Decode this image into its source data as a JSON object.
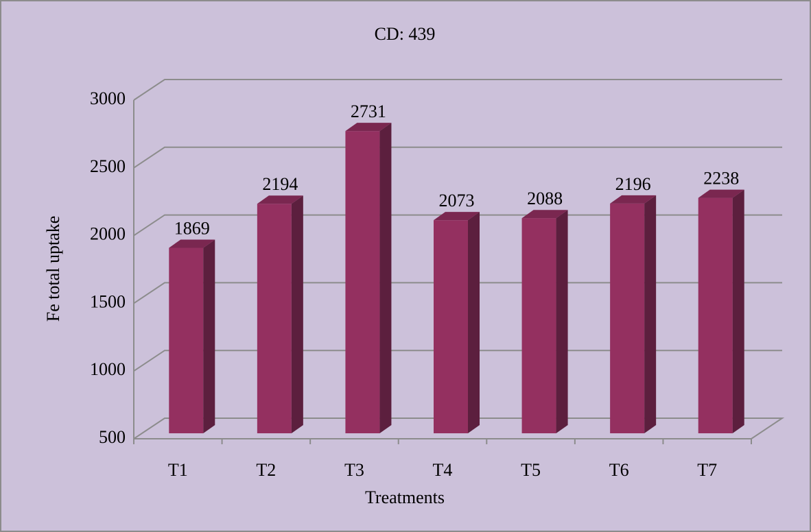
{
  "chart_data": {
    "type": "bar",
    "title": "CD: 439",
    "x_label": "Treatments",
    "y_label": "Fe total uptake",
    "categories": [
      "T1",
      "T2",
      "T3",
      "T4",
      "T5",
      "T6",
      "T7"
    ],
    "values": [
      1869,
      2194,
      2731,
      2073,
      2088,
      2196,
      2238
    ],
    "color": "#943060",
    "ylim": [
      500,
      3000
    ],
    "yticks": [
      500,
      1000,
      1500,
      2000,
      2500,
      3000
    ],
    "grid": true
  }
}
